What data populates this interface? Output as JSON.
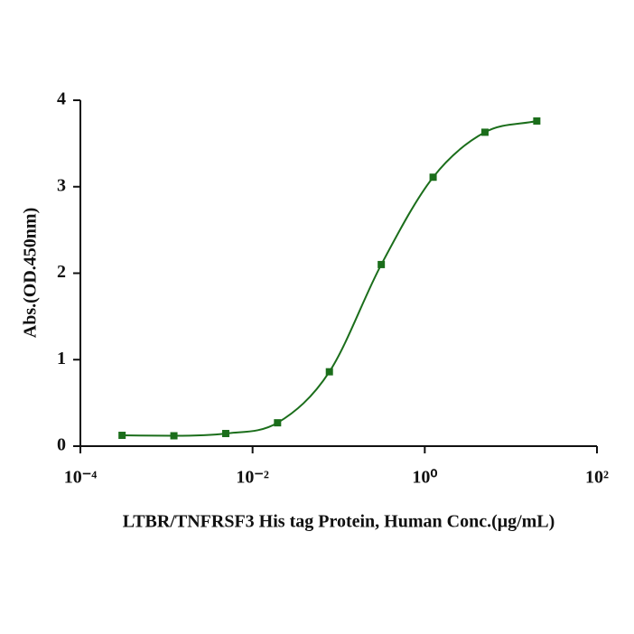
{
  "chart_data": {
    "type": "scatter",
    "x_label": "LTBR/TNFRSF3 His tag Protein, Human Conc.(μg/mL)",
    "y_label": "Abs.(OD.450nm)",
    "x": [
      0.000305,
      0.00122,
      0.00488,
      0.0195,
      0.078,
      0.3125,
      1.25,
      5,
      20
    ],
    "values": [
      0.125,
      0.12,
      0.146,
      0.27,
      0.86,
      2.1,
      3.11,
      3.63,
      3.76
    ],
    "color": "#1b6e1b",
    "x_log": true,
    "xlim": [
      0.0001,
      100
    ],
    "xticks": [
      {
        "value": 0.0001,
        "label": "10⁻⁴"
      },
      {
        "value": 0.01,
        "label": "10⁻²"
      },
      {
        "value": 1,
        "label": "10⁰"
      },
      {
        "value": 100,
        "label": "10²"
      }
    ],
    "ylim": [
      0,
      4
    ],
    "yticks": [
      0,
      1,
      2,
      3,
      4
    ],
    "grid": false
  }
}
